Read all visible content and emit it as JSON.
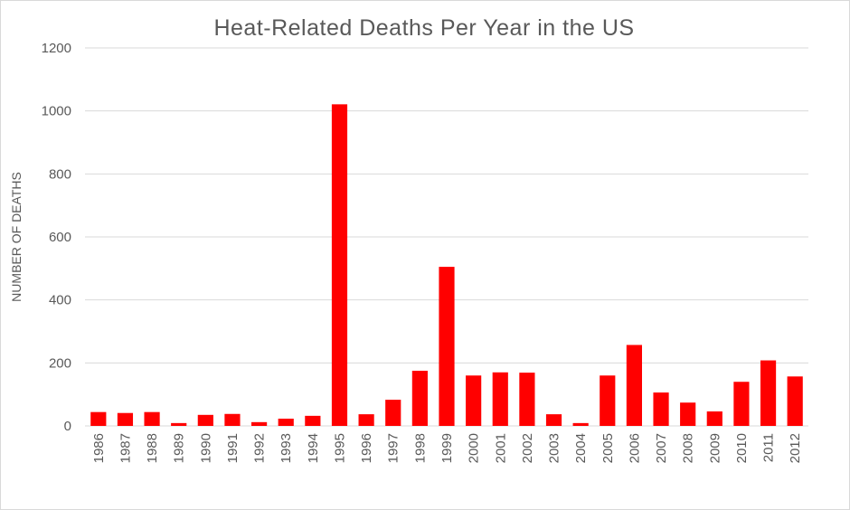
{
  "chart_data": {
    "type": "bar",
    "title": "Heat-Related Deaths Per Year in the US",
    "xlabel": "",
    "ylabel": "NUMBER OF DEATHS",
    "ylim": [
      0,
      1200
    ],
    "yticks": [
      0,
      200,
      400,
      600,
      800,
      1000,
      1200
    ],
    "grid": true,
    "legend": "none",
    "bar_color": "#ff0000",
    "categories": [
      "1986",
      "1987",
      "1988",
      "1989",
      "1990",
      "1991",
      "1992",
      "1993",
      "1994",
      "1995",
      "1996",
      "1997",
      "1998",
      "1999",
      "2000",
      "2001",
      "2002",
      "2003",
      "2004",
      "2005",
      "2006",
      "2007",
      "2008",
      "2009",
      "2010",
      "2011",
      "2012"
    ],
    "values": [
      44,
      41,
      44,
      9,
      35,
      38,
      12,
      23,
      32,
      1021,
      37,
      83,
      175,
      505,
      160,
      170,
      169,
      37,
      9,
      160,
      257,
      106,
      74,
      46,
      140,
      208,
      157
    ]
  }
}
